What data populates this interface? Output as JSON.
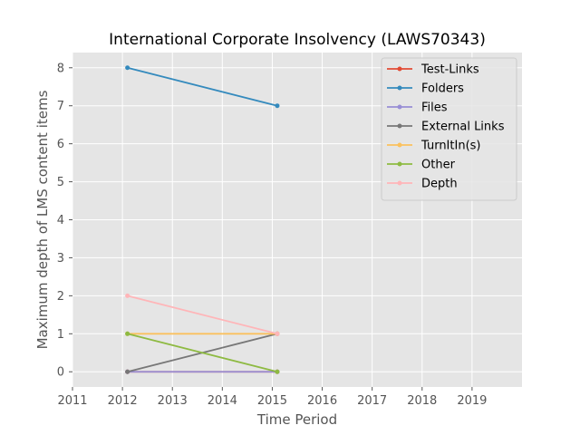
{
  "chart_data": {
    "type": "line",
    "title": "International Corporate Insolvency (LAWS70343)",
    "xlabel": "Time Period",
    "ylabel": "Maximum depth of LMS content items",
    "xlim": [
      2011,
      2020
    ],
    "ylim": [
      -0.4,
      8.4
    ],
    "xticks": [
      2011,
      2012,
      2013,
      2014,
      2015,
      2016,
      2017,
      2018,
      2019
    ],
    "yticks": [
      0,
      1,
      2,
      3,
      4,
      5,
      6,
      7,
      8
    ],
    "x": [
      2012.1,
      2015.1
    ],
    "grid": true,
    "legend_position": "top-right",
    "background": "#e5e5e5",
    "series": [
      {
        "name": "Test-Links",
        "color": "#e24a33",
        "values": [
          0,
          0
        ]
      },
      {
        "name": "Folders",
        "color": "#348abd",
        "values": [
          8,
          7
        ]
      },
      {
        "name": "Files",
        "color": "#988ed5",
        "values": [
          0,
          0
        ]
      },
      {
        "name": "External Links",
        "color": "#777777",
        "values": [
          0,
          1
        ]
      },
      {
        "name": "TurnItIn(s)",
        "color": "#fbc15e",
        "values": [
          1,
          1
        ]
      },
      {
        "name": "Other",
        "color": "#8eba42",
        "values": [
          1,
          0
        ]
      },
      {
        "name": "Depth",
        "color": "#ffb5b8",
        "values": [
          2,
          1
        ]
      }
    ]
  }
}
